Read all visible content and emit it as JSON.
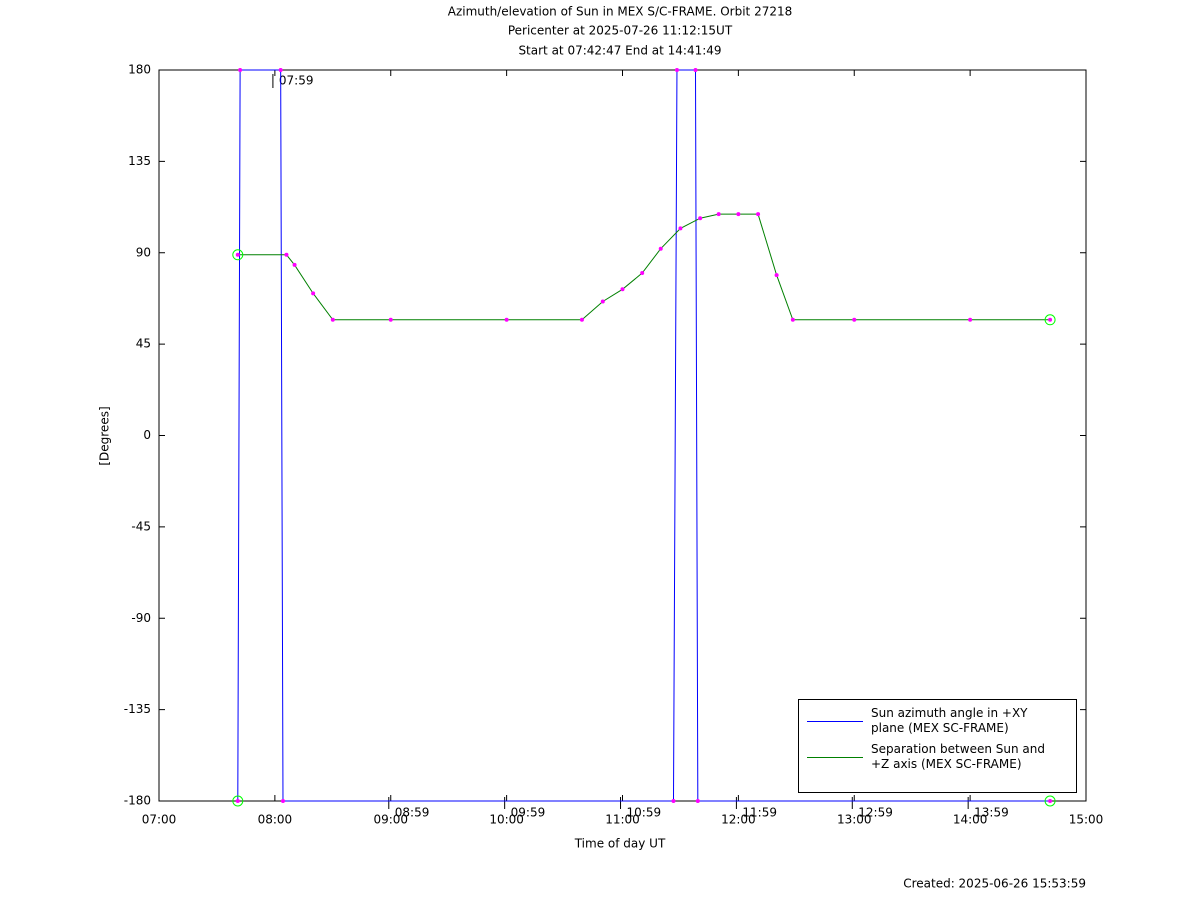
{
  "chart_data": {
    "type": "line",
    "title": "Azimuth/elevation of Sun in MEX S/C-FRAME.  Orbit 27218",
    "subtitle": "Pericenter at 2025-07-26 11:12:15UT",
    "subtitle2": "Start at 07:42:47 End at 14:41:49",
    "xlabel": "Time of day UT",
    "ylabel": "[Degrees]",
    "footer": "Created: 2025-06-26 15:53:59",
    "xlim": [
      7,
      15
    ],
    "xticks": [
      {
        "value": 7,
        "label": "07:00"
      },
      {
        "value": 8,
        "label": "08:00"
      },
      {
        "value": 9,
        "label": "09:00"
      },
      {
        "value": 10,
        "label": "10:00"
      },
      {
        "value": 11,
        "label": "11:00"
      },
      {
        "value": 12,
        "label": "12:00"
      },
      {
        "value": 13,
        "label": "13:00"
      },
      {
        "value": 14,
        "label": "14:00"
      },
      {
        "value": 15,
        "label": "15:00"
      }
    ],
    "ylim": [
      -180,
      180
    ],
    "yticks": [
      180,
      135,
      90,
      45,
      0,
      -45,
      -90,
      -135,
      -180
    ],
    "series": [
      {
        "name": "Sun azimuth angle in +XY plane (MEX SC-FRAME)",
        "color": "#0000ff",
        "x": [
          7.68,
          7.7,
          8.05,
          8.07,
          11.44,
          11.47,
          11.63,
          11.65,
          14.69
        ],
        "values": [
          -180,
          180,
          180,
          -180,
          -180,
          180,
          180,
          -180,
          -180
        ]
      },
      {
        "name": "Separation between Sun and +Z axis (MEX SC-FRAME)",
        "color": "#008000",
        "x": [
          7.68,
          8.1,
          8.17,
          8.33,
          8.5,
          9.0,
          10.0,
          10.65,
          10.83,
          11.0,
          11.17,
          11.33,
          11.5,
          11.67,
          11.83,
          12.0,
          12.17,
          12.33,
          12.47,
          13.0,
          14.0,
          14.69
        ],
        "values": [
          89,
          89,
          84,
          70,
          57,
          57,
          57,
          57,
          66,
          72,
          80,
          92,
          102,
          107,
          109,
          109,
          109,
          79,
          57,
          57,
          57,
          57
        ]
      }
    ],
    "annotations": [
      {
        "x": 7.983,
        "y": 180,
        "label": "07:59"
      },
      {
        "x": 8.983,
        "y": -180,
        "label": "08:59"
      },
      {
        "x": 9.983,
        "y": -180,
        "label": "09:59"
      },
      {
        "x": 10.983,
        "y": -180,
        "label": "10:59"
      },
      {
        "x": 11.983,
        "y": -180,
        "label": "11:59"
      },
      {
        "x": 12.983,
        "y": -180,
        "label": "12:59"
      },
      {
        "x": 13.983,
        "y": -180,
        "label": "13:59"
      }
    ],
    "legend": "lower right"
  }
}
